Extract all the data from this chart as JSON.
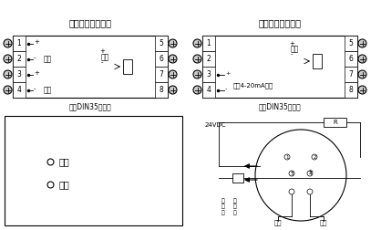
{
  "bg_color": "#f0f0f0",
  "title_left": "导轨式温度变送器",
  "title_right": "导轨式温度变送器",
  "subtitle_left": "标准DIN35导轨式",
  "subtitle_right": "标准DIN35导轨式",
  "left_box_labels_left": [
    "1",
    "2",
    "3",
    "4"
  ],
  "left_box_labels_right": [
    "5",
    "6",
    "7",
    "8"
  ],
  "left_text1": "电源",
  "left_text2": "输出",
  "input_text": "输入",
  "right_text1": "线制4-20mA输出",
  "adj_text1": "调零",
  "adj_text2": "调满",
  "circle_24v": "24VDC",
  "circle_r": "R",
  "zero_text": "零位",
  "range_text": "量程",
  "thermocouple_text": "热电偶",
  "thermoresist_text": "热电阻"
}
